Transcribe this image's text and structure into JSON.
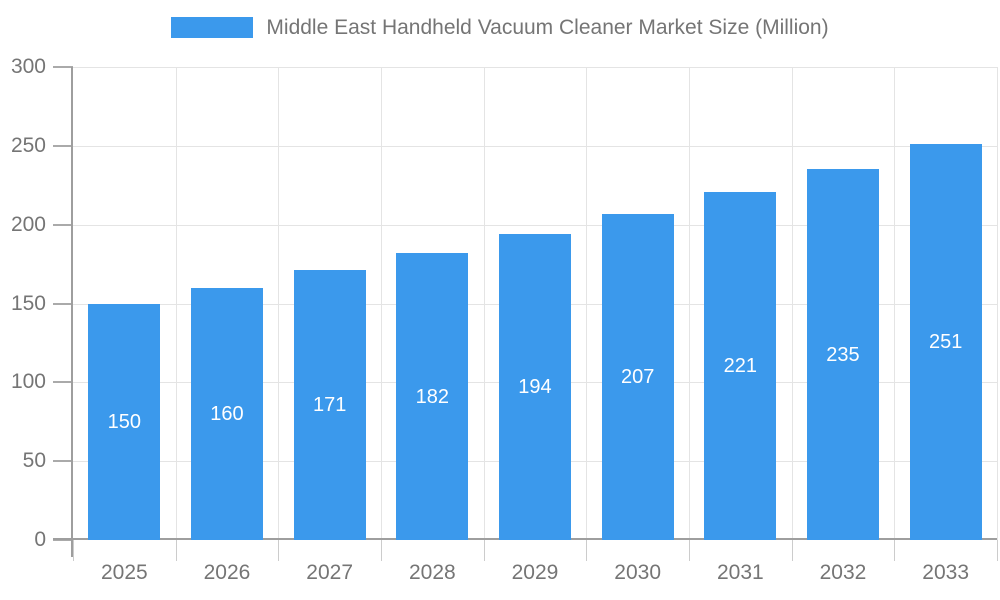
{
  "legend": {
    "label": "Middle East Handheld Vacuum Cleaner Market Size (Million)"
  },
  "chart_data": {
    "type": "bar",
    "title": "Middle East Handheld Vacuum Cleaner Market Size (Million)",
    "categories": [
      "2025",
      "2026",
      "2027",
      "2028",
      "2029",
      "2030",
      "2031",
      "2032",
      "2033"
    ],
    "values": [
      150,
      160,
      171,
      182,
      194,
      207,
      221,
      235,
      251
    ],
    "xlabel": "",
    "ylabel": "",
    "ylim": [
      0,
      300
    ],
    "ytick_step": 50,
    "yticks": [
      0,
      50,
      100,
      150,
      200,
      250,
      300
    ],
    "grid": true,
    "legend_position": "top-center",
    "value_label_position": "inside-center",
    "bar_width_fraction": 0.7
  },
  "colors": {
    "bar": "#3B99EC",
    "axis_line": "#9E9E9E",
    "gridline": "#E4E4E4",
    "y_tick": "#AAAAAA",
    "x_tick": "#CCCCCC",
    "tick_label": "#757575",
    "title": "#757575",
    "value_label": "#FFFFFF",
    "background": "#FFFFFF"
  }
}
